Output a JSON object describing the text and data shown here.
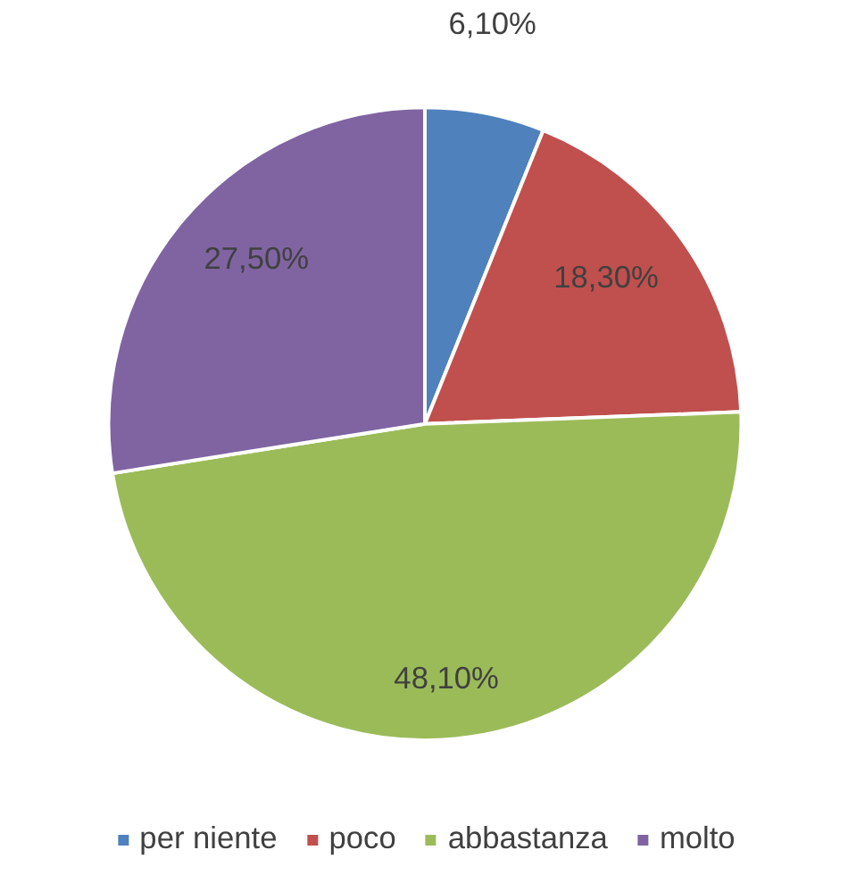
{
  "chart_data": {
    "type": "pie",
    "categories": [
      "per niente",
      "poco",
      "abbastanza",
      "molto"
    ],
    "values": [
      6.1,
      18.3,
      48.1,
      27.5
    ],
    "value_labels": [
      "6,10%",
      "18,30%",
      "48,10%",
      "27,50%"
    ],
    "colors": [
      "#4f81bd",
      "#c0504d",
      "#9bbb59",
      "#8064a2"
    ],
    "legend": "bottom"
  }
}
